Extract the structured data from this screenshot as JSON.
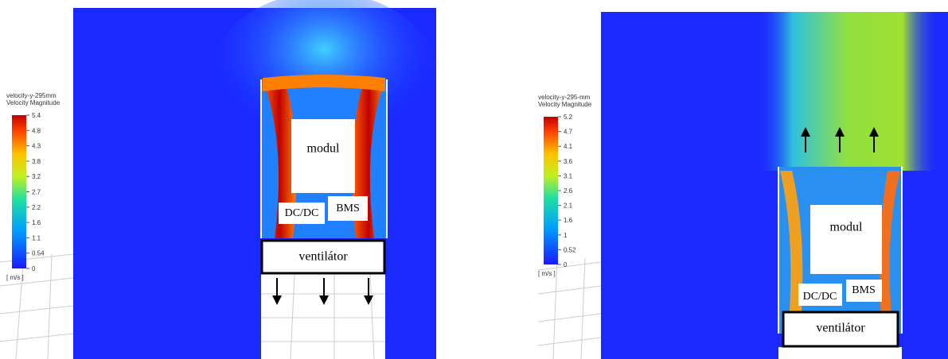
{
  "panels": [
    {
      "legend": {
        "title": [
          "velocity-y-295mm",
          "Velocity Magnitude"
        ],
        "ticks": [
          "5.4",
          "4.8",
          "4.3",
          "3.8",
          "3.2",
          "2.7",
          "2.2",
          "1.6",
          "1.1",
          "0.54",
          "0"
        ],
        "unit": "[ m/s ]"
      },
      "labels": {
        "module": "modul",
        "dcdc": "DC/DC",
        "bms": "BMS",
        "fan": "ventilátor"
      }
    },
    {
      "legend": {
        "title": [
          "velocity-y-295-mm",
          "Velocity Magnitude"
        ],
        "ticks": [
          "5.2",
          "4.7",
          "4.1",
          "3.6",
          "3.1",
          "2.6",
          "2.1",
          "1.6",
          "1",
          "0.52",
          "0"
        ],
        "unit": "[ m/s ]"
      },
      "labels": {
        "module": "modul",
        "dcdc": "DC/DC",
        "bms": "BMS",
        "fan": "ventilátor"
      }
    }
  ]
}
